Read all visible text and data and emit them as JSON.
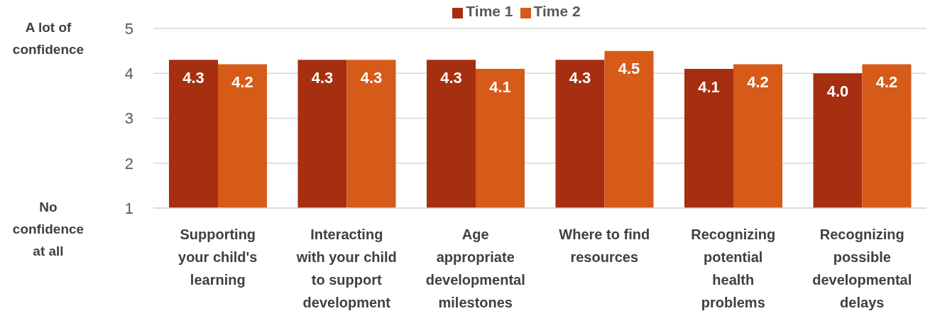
{
  "chart_data": {
    "type": "bar",
    "categories": [
      "Supporting your child's learning",
      "Interacting with your child to support development",
      "Age appropriate developmental milestones",
      "Where to find resources",
      "Recognizing potential health problems",
      "Recognizing possible developmental delays"
    ],
    "series": [
      {
        "name": "Time 1",
        "color": "#a52f10",
        "values": [
          4.3,
          4.3,
          4.3,
          4.3,
          4.1,
          4.0
        ],
        "value_labels": [
          "4.3",
          "4.3",
          "4.3",
          "4.3",
          "4.1",
          "4.0"
        ]
      },
      {
        "name": "Time 2",
        "color": "#d65a18",
        "values": [
          4.2,
          4.3,
          4.1,
          4.5,
          4.2,
          4.2
        ],
        "value_labels": [
          "4.2",
          "4.3",
          "4.1",
          "4.5",
          "4.2",
          "4.2"
        ]
      }
    ],
    "ylim": [
      1,
      5
    ],
    "yticks": [
      1,
      2,
      3,
      4,
      5
    ],
    "grid": "y",
    "legend": "top",
    "annotations": [
      "A lot of confidence",
      "No confidence at all"
    ]
  }
}
